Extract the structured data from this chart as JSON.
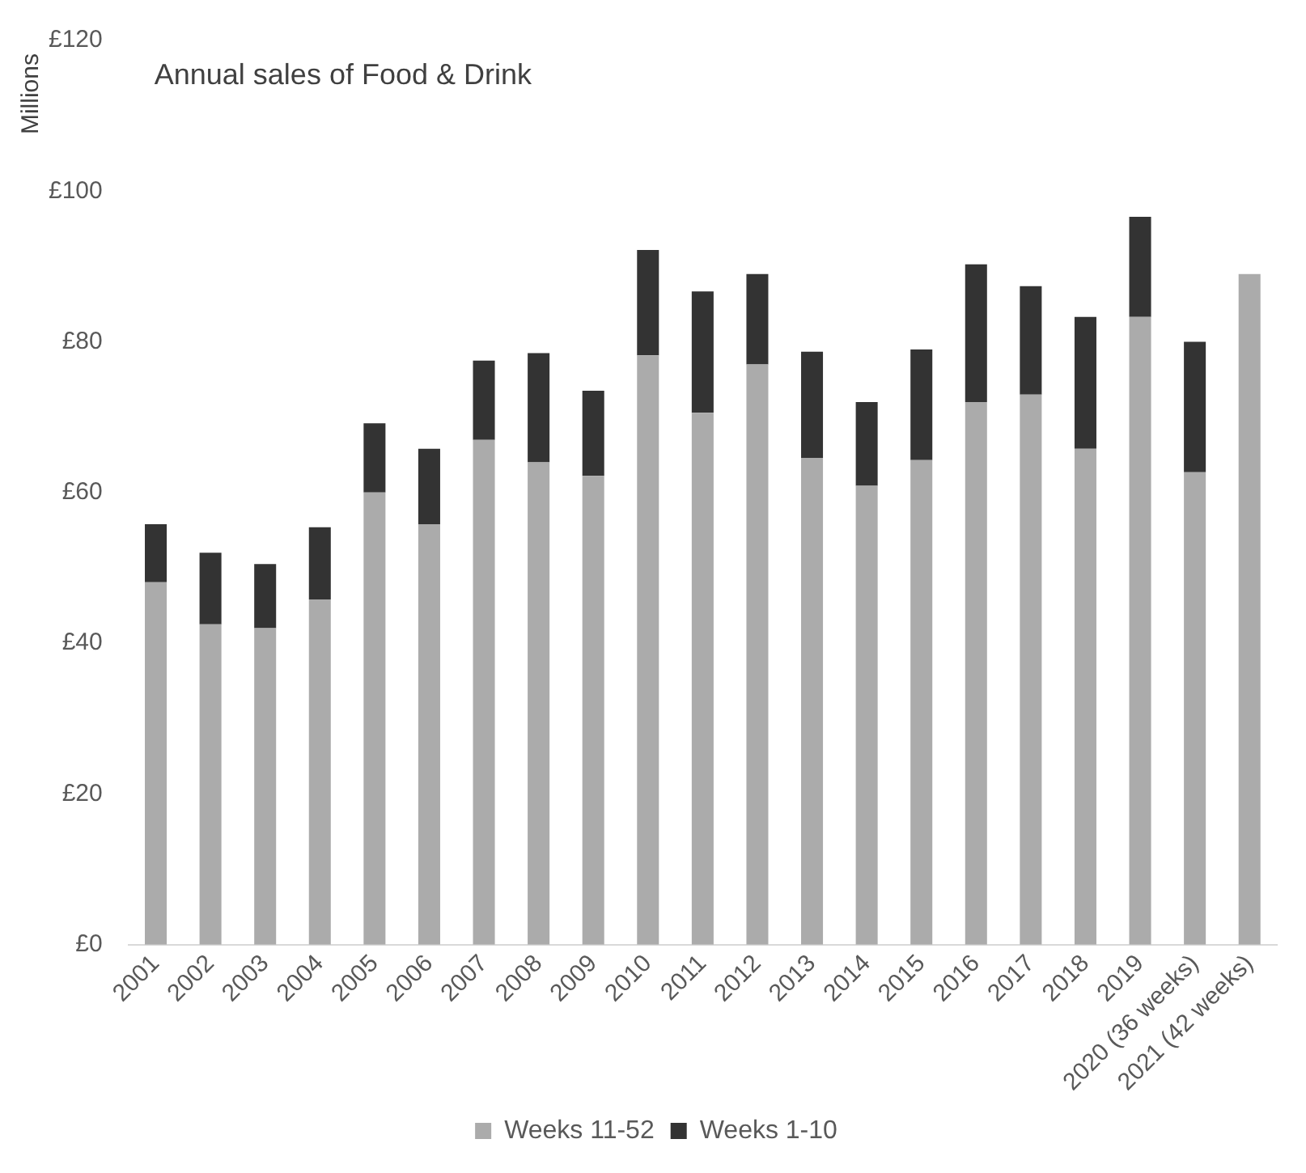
{
  "chart_data": {
    "type": "bar",
    "title": "Annual sales of Food & Drink",
    "ylabel": "Millions",
    "categories": [
      "2001",
      "2002",
      "2003",
      "2004",
      "2005",
      "2006",
      "2007",
      "2008",
      "2009",
      "2010",
      "2011",
      "2012",
      "2013",
      "2014",
      "2015",
      "2016",
      "2017",
      "2018",
      "2019",
      "2020 (36 weeks)",
      "2021 (42 weeks)"
    ],
    "series": [
      {
        "name": "Weeks 11-52",
        "color": "#ababab",
        "values": [
          48.1,
          42.5,
          42,
          45.8,
          60,
          55.8,
          67,
          64,
          62.2,
          78.2,
          70.6,
          77,
          64.6,
          60.9,
          64.3,
          72,
          73,
          65.8,
          83.3,
          62.7,
          89
        ]
      },
      {
        "name": "Weeks 1-10",
        "color": "#333333",
        "values": [
          7.7,
          9.5,
          8.5,
          9.6,
          9.2,
          10,
          10.5,
          14.5,
          11.3,
          14,
          16.1,
          12,
          14.1,
          11.1,
          14.7,
          18.3,
          14.4,
          17.5,
          13.3,
          17.3,
          null
        ]
      }
    ],
    "stacked": true,
    "ylim": [
      0,
      120
    ],
    "yticks": [
      {
        "value": 0,
        "label": "£0"
      },
      {
        "value": 20,
        "label": "£20"
      },
      {
        "value": 40,
        "label": "£40"
      },
      {
        "value": 60,
        "label": "£60"
      },
      {
        "value": 80,
        "label": "£80"
      },
      {
        "value": 100,
        "label": "£100"
      },
      {
        "value": 120,
        "label": "£120"
      }
    ],
    "grid": false,
    "legend": "bottom"
  }
}
